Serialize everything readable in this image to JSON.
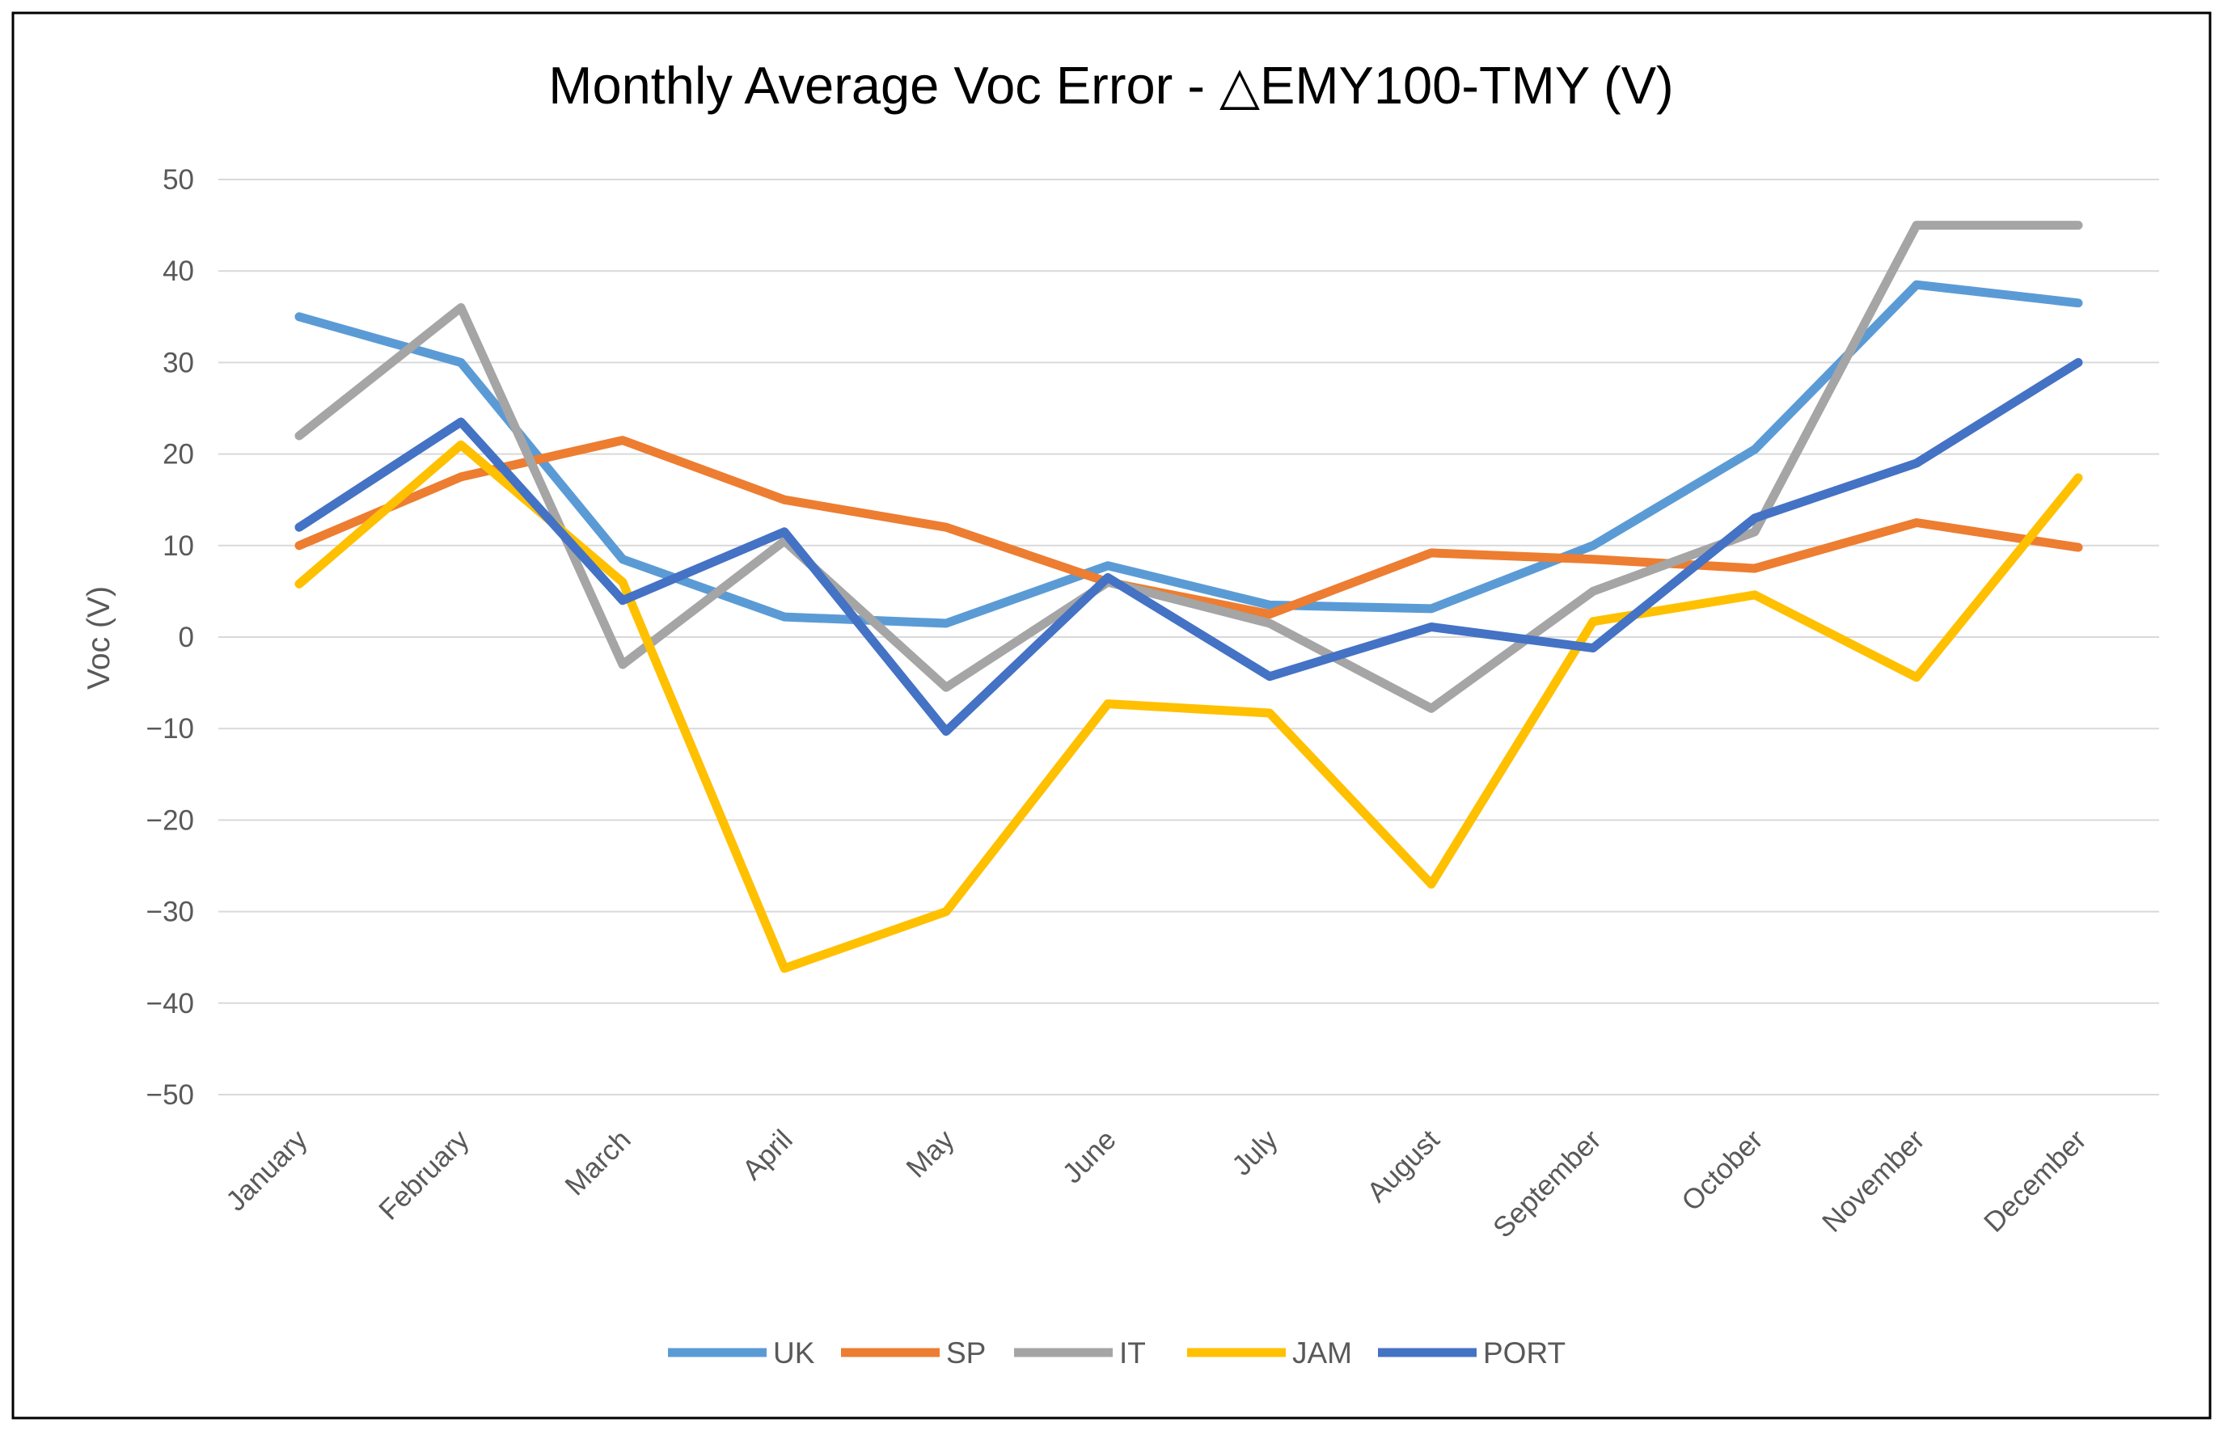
{
  "chart_data": {
    "type": "line",
    "title": "Monthly Average Voc Error - △EMY100-TMY (V)",
    "xlabel": "",
    "ylabel": "Voc (V)",
    "ylim": [
      -50,
      50
    ],
    "yticks": [
      50,
      40,
      30,
      20,
      10,
      0,
      -10,
      -20,
      -30,
      -40,
      -50
    ],
    "ytick_labels": [
      "50",
      "40",
      "30",
      "20",
      "10",
      "0",
      "−10",
      "−20",
      "−30",
      "−40",
      "−50"
    ],
    "grid": true,
    "legend_position": "bottom",
    "categories": [
      "January",
      "February",
      "March",
      "April",
      "May",
      "June",
      "July",
      "August",
      "September",
      "October",
      "November",
      "December"
    ],
    "series": [
      {
        "name": "UK",
        "color": "#5b9bd5",
        "values": [
          35,
          30,
          8.5,
          2.2,
          1.5,
          7.8,
          3.5,
          3.1,
          10,
          20.5,
          38.5,
          36.5
        ]
      },
      {
        "name": "SP",
        "color": "#ed7d31",
        "values": [
          10,
          17.5,
          21.5,
          15,
          12,
          6,
          2.5,
          9.2,
          8.5,
          7.5,
          12.5,
          9.8
        ]
      },
      {
        "name": "IT",
        "color": "#a5a5a5",
        "values": [
          22,
          36,
          -3,
          10.5,
          -5.5,
          6,
          1.5,
          -7.8,
          5,
          11.5,
          45,
          45
        ]
      },
      {
        "name": "JAM",
        "color": "#ffc000",
        "values": [
          5.8,
          21,
          6,
          -36.2,
          -30,
          -7.3,
          -8.3,
          -27,
          1.7,
          4.6,
          -4.4,
          17.4
        ]
      },
      {
        "name": "PORT",
        "color": "#4472c4",
        "values": [
          12,
          23.5,
          4,
          11.5,
          -10.3,
          6.5,
          -4.3,
          1.1,
          -1.2,
          13,
          19,
          30
        ]
      }
    ]
  }
}
